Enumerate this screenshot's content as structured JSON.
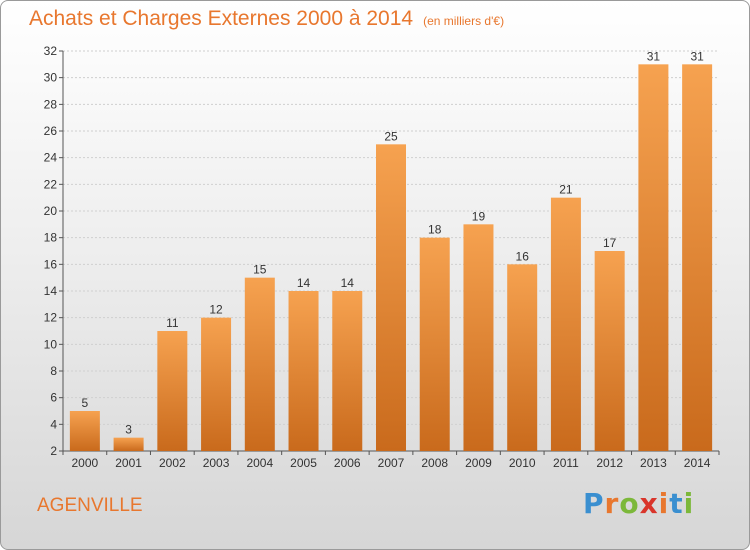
{
  "header": {
    "title": "Achats et Charges Externes 2000 à 2014",
    "unit": "(en milliers d'€)"
  },
  "footer": {
    "town": "AGENVILLE",
    "logo_text": "Proxiti"
  },
  "colors": {
    "accent": "#e8772e",
    "bar_light": "#f6a250",
    "bar_dark": "#c96a1c",
    "logo_letters": [
      "#3a8fd0",
      "#e8772e",
      "#7cb83a",
      "#d9352b",
      "#e8772e",
      "#3a8fd0",
      "#7cb83a"
    ]
  },
  "chart_data": {
    "type": "bar",
    "title": "Achats et Charges Externes 2000 à 2014",
    "categories": [
      "2000",
      "2001",
      "2002",
      "2003",
      "2004",
      "2005",
      "2006",
      "2007",
      "2008",
      "2009",
      "2010",
      "2011",
      "2012",
      "2013",
      "2014"
    ],
    "values": [
      5,
      3,
      11,
      12,
      15,
      14,
      14,
      25,
      18,
      19,
      16,
      21,
      17,
      31,
      31
    ],
    "ylim": [
      2,
      32
    ],
    "yticks": [
      2,
      4,
      6,
      8,
      10,
      12,
      14,
      16,
      18,
      20,
      22,
      24,
      26,
      28,
      30,
      32
    ],
    "grid": true,
    "data_labels": true
  }
}
